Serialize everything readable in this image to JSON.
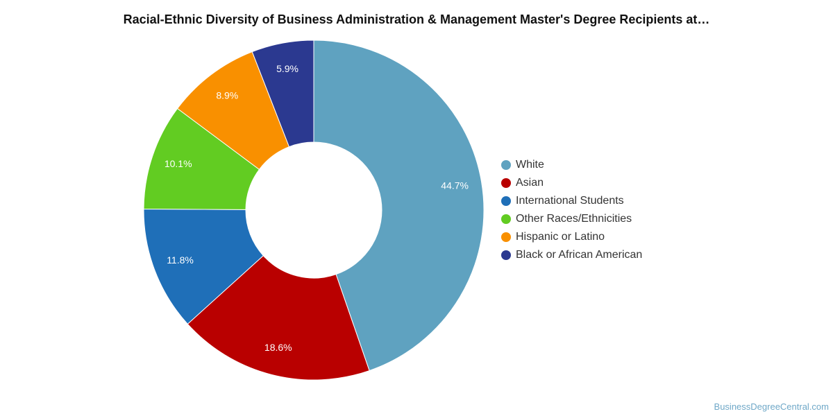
{
  "chart_data": {
    "type": "pie",
    "variant": "donut",
    "title": "Racial-Ethnic Diversity of Business Administration & Management Master's Degree Recipients at…",
    "categories": [
      "White",
      "Asian",
      "International Students",
      "Other Races/Ethnicities",
      "Hispanic or Latino",
      "Black or African American"
    ],
    "values": [
      44.7,
      18.6,
      11.8,
      10.1,
      8.9,
      5.9
    ],
    "labels": [
      "44.7%",
      "18.6%",
      "11.8%",
      "10.1%",
      "8.9%",
      "5.9%"
    ],
    "colors": [
      "#5fa2c0",
      "#b90000",
      "#1f6fb8",
      "#62cc22",
      "#f99000",
      "#2b3990"
    ],
    "legend_position": "right"
  },
  "watermark": "BusinessDegreeCentral.com"
}
